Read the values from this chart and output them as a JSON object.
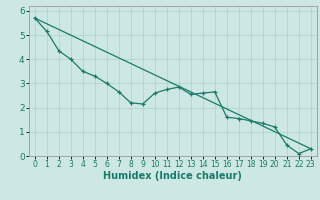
{
  "xlabel": "Humidex (Indice chaleur)",
  "bg_color": "#cde8e4",
  "grid_color": "#b0d5cf",
  "line_color": "#1a7a6a",
  "xlim": [
    -0.5,
    23.5
  ],
  "ylim": [
    0,
    6.2
  ],
  "xticks": [
    0,
    1,
    2,
    3,
    4,
    5,
    6,
    7,
    8,
    9,
    10,
    11,
    12,
    13,
    14,
    15,
    16,
    17,
    18,
    19,
    20,
    21,
    22,
    23
  ],
  "yticks": [
    0,
    1,
    2,
    3,
    4,
    5,
    6
  ],
  "data_line": [
    [
      0,
      5.7
    ],
    [
      1,
      5.15
    ],
    [
      2,
      4.35
    ],
    [
      3,
      4.0
    ],
    [
      4,
      3.5
    ],
    [
      5,
      3.3
    ],
    [
      6,
      3.0
    ],
    [
      7,
      2.65
    ],
    [
      8,
      2.2
    ],
    [
      9,
      2.15
    ],
    [
      10,
      2.6
    ],
    [
      11,
      2.75
    ],
    [
      12,
      2.85
    ],
    [
      13,
      2.55
    ],
    [
      14,
      2.6
    ],
    [
      15,
      2.65
    ],
    [
      16,
      1.6
    ],
    [
      17,
      1.55
    ],
    [
      18,
      1.45
    ],
    [
      19,
      1.35
    ],
    [
      20,
      1.2
    ],
    [
      21,
      0.45
    ],
    [
      22,
      0.1
    ],
    [
      23,
      0.3
    ]
  ],
  "trend_line": [
    [
      0,
      5.7
    ],
    [
      23,
      0.3
    ]
  ],
  "tick_fontsize": 5.5,
  "xlabel_fontsize": 7,
  "marker_size": 3.5,
  "linewidth": 0.9
}
